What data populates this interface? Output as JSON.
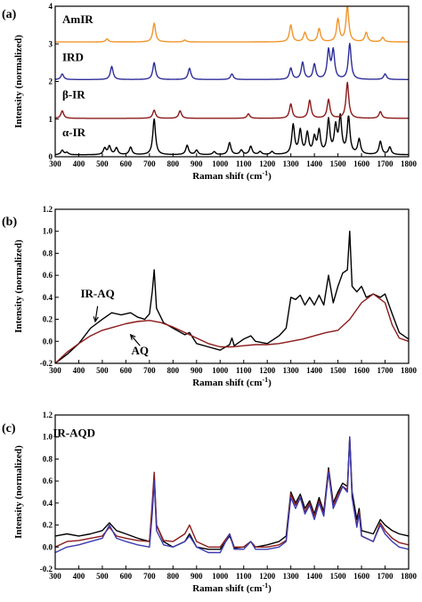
{
  "chart_data": [
    {
      "panel": "(a)",
      "type": "line",
      "xlabel": "Raman shift (cm",
      "xlabel_sup": "-1",
      "xlabel_close": ")",
      "ylabel": "Intensity (normalized)",
      "xlim": [
        300,
        1800
      ],
      "ylim": [
        0,
        4
      ],
      "x_ticks": [
        300,
        400,
        500,
        600,
        700,
        800,
        900,
        1000,
        1100,
        1200,
        1300,
        1400,
        1500,
        1600,
        1700,
        1800
      ],
      "y_ticks": [
        0,
        1,
        2,
        3,
        4
      ],
      "series": [
        {
          "name": "α-IR",
          "color": "#000000",
          "offset": 0,
          "baseline": 0.05,
          "peaks": [
            [
              330,
              0.12
            ],
            [
              350,
              0.06
            ],
            [
              510,
              0.17
            ],
            [
              530,
              0.22
            ],
            [
              560,
              0.18
            ],
            [
              620,
              0.2
            ],
            [
              720,
              0.95
            ],
            [
              860,
              0.25
            ],
            [
              900,
              0.12
            ],
            [
              975,
              0.08
            ],
            [
              1040,
              0.32
            ],
            [
              1090,
              0.12
            ],
            [
              1130,
              0.22
            ],
            [
              1170,
              0.08
            ],
            [
              1220,
              0.08
            ],
            [
              1310,
              0.78
            ],
            [
              1340,
              0.62
            ],
            [
              1370,
              0.55
            ],
            [
              1400,
              0.42
            ],
            [
              1420,
              0.6
            ],
            [
              1460,
              0.9
            ],
            [
              1490,
              0.7
            ],
            [
              1510,
              0.95
            ],
            [
              1545,
              0.98
            ],
            [
              1590,
              0.4
            ],
            [
              1680,
              0.35
            ],
            [
              1720,
              0.2
            ]
          ]
        },
        {
          "name": "β-IR",
          "color": "#8b1a1a",
          "offset": 1,
          "baseline": 0.02,
          "peaks": [
            [
              330,
              0.2
            ],
            [
              720,
              0.22
            ],
            [
              830,
              0.2
            ],
            [
              1120,
              0.12
            ],
            [
              1300,
              0.38
            ],
            [
              1380,
              0.48
            ],
            [
              1460,
              0.5
            ],
            [
              1540,
              0.95
            ],
            [
              1680,
              0.18
            ]
          ]
        },
        {
          "name": "IRD",
          "color": "#2e2e9a",
          "offset": 2,
          "baseline": 0.05,
          "peaks": [
            [
              330,
              0.15
            ],
            [
              540,
              0.35
            ],
            [
              720,
              0.45
            ],
            [
              870,
              0.3
            ],
            [
              1050,
              0.15
            ],
            [
              1300,
              0.3
            ],
            [
              1350,
              0.45
            ],
            [
              1400,
              0.4
            ],
            [
              1460,
              0.75
            ],
            [
              1480,
              0.75
            ],
            [
              1550,
              0.95
            ],
            [
              1700,
              0.15
            ]
          ]
        },
        {
          "name": "AmIR",
          "color": "#f0952b",
          "offset": 3,
          "baseline": 0.05,
          "peaks": [
            [
              520,
              0.08
            ],
            [
              720,
              0.5
            ],
            [
              850,
              0.05
            ],
            [
              1300,
              0.45
            ],
            [
              1360,
              0.25
            ],
            [
              1420,
              0.35
            ],
            [
              1500,
              0.6
            ],
            [
              1540,
              0.95
            ],
            [
              1620,
              0.25
            ],
            [
              1690,
              0.12
            ]
          ]
        }
      ]
    },
    {
      "panel": "(b)",
      "type": "line",
      "xlabel": "Raman shift (cm",
      "xlabel_sup": "-1",
      "xlabel_close": ")",
      "ylabel": "Intensity (normalized)",
      "xlim": [
        300,
        1800
      ],
      "ylim": [
        -0.2,
        1.2
      ],
      "x_ticks": [
        300,
        400,
        500,
        600,
        700,
        800,
        900,
        1000,
        1100,
        1200,
        1300,
        1400,
        1500,
        1600,
        1700,
        1800
      ],
      "y_ticks": [
        -0.2,
        0.0,
        0.2,
        0.4,
        0.6,
        0.8,
        1.0,
        1.2
      ],
      "annotations": [
        {
          "text": "IR-AQ",
          "x": 480,
          "y": 0.4
        },
        {
          "text": "AQ",
          "x": 660,
          "y": -0.12
        }
      ],
      "series": [
        {
          "name": "IR-AQ",
          "color": "#000000",
          "x": [
            300,
            350,
            400,
            450,
            500,
            540,
            580,
            620,
            650,
            680,
            700,
            712,
            720,
            730,
            760,
            800,
            850,
            870,
            900,
            950,
            1000,
            1040,
            1050,
            1060,
            1100,
            1130,
            1150,
            1200,
            1250,
            1280,
            1300,
            1320,
            1340,
            1360,
            1380,
            1400,
            1420,
            1440,
            1460,
            1480,
            1500,
            1520,
            1540,
            1550,
            1560,
            1580,
            1600,
            1620,
            1650,
            1680,
            1700,
            1730,
            1760,
            1800
          ],
          "y": [
            -0.2,
            -0.12,
            -0.02,
            0.12,
            0.2,
            0.26,
            0.24,
            0.26,
            0.22,
            0.2,
            0.25,
            0.45,
            0.65,
            0.3,
            0.17,
            0.12,
            0.06,
            0.08,
            -0.02,
            -0.05,
            -0.08,
            -0.03,
            0.03,
            -0.04,
            0.02,
            0.05,
            0.0,
            -0.02,
            0.05,
            0.12,
            0.4,
            0.38,
            0.42,
            0.33,
            0.4,
            0.33,
            0.42,
            0.33,
            0.6,
            0.35,
            0.5,
            0.62,
            0.65,
            1.0,
            0.5,
            0.45,
            0.5,
            0.4,
            0.43,
            0.4,
            0.43,
            0.25,
            0.08,
            0.02
          ]
        },
        {
          "name": "AQ",
          "color": "#8b1a1a",
          "x": [
            300,
            350,
            400,
            450,
            500,
            550,
            600,
            650,
            700,
            750,
            800,
            850,
            900,
            950,
            1000,
            1050,
            1100,
            1150,
            1200,
            1250,
            1300,
            1350,
            1400,
            1450,
            1500,
            1550,
            1600,
            1650,
            1700,
            1730,
            1760,
            1800
          ],
          "y": [
            -0.2,
            -0.1,
            -0.02,
            0.05,
            0.1,
            0.13,
            0.16,
            0.18,
            0.19,
            0.17,
            0.13,
            0.08,
            0.03,
            -0.02,
            -0.05,
            -0.05,
            -0.04,
            -0.03,
            -0.03,
            -0.02,
            0.0,
            0.02,
            0.05,
            0.08,
            0.1,
            0.2,
            0.35,
            0.43,
            0.35,
            0.15,
            0.03,
            0.0
          ]
        }
      ]
    },
    {
      "panel": "(c)",
      "type": "line",
      "xlabel": "Raman shift (cm",
      "xlabel_sup": "-1",
      "xlabel_close": ")",
      "ylabel": "Intensity (normalized)",
      "xlim": [
        300,
        1800
      ],
      "ylim": [
        -0.2,
        1.2
      ],
      "x_ticks": [
        300,
        400,
        500,
        600,
        700,
        800,
        900,
        1000,
        1100,
        1200,
        1300,
        1400,
        1500,
        1600,
        1700,
        1800
      ],
      "y_ticks": [
        -0.2,
        0.0,
        0.2,
        0.4,
        0.6,
        0.8,
        1.0,
        1.2
      ],
      "annotations": [
        {
          "text": "IR-AQD",
          "x": 380,
          "y": 1.0
        }
      ],
      "series": [
        {
          "color": "#000000",
          "x": [
            300,
            350,
            400,
            450,
            500,
            530,
            560,
            600,
            650,
            700,
            712,
            720,
            730,
            760,
            800,
            850,
            870,
            900,
            950,
            1000,
            1040,
            1050,
            1060,
            1100,
            1130,
            1150,
            1200,
            1250,
            1280,
            1300,
            1320,
            1340,
            1360,
            1380,
            1400,
            1420,
            1440,
            1460,
            1480,
            1500,
            1520,
            1540,
            1550,
            1560,
            1580,
            1590,
            1600,
            1650,
            1680,
            1700,
            1730,
            1760,
            1800
          ],
          "y": [
            0.1,
            0.12,
            0.1,
            0.12,
            0.15,
            0.22,
            0.15,
            0.12,
            0.08,
            0.05,
            0.35,
            0.65,
            0.2,
            0.05,
            0.0,
            0.05,
            0.12,
            0.0,
            -0.02,
            -0.02,
            0.1,
            0.05,
            -0.01,
            0.0,
            0.05,
            0.0,
            0.02,
            0.05,
            0.1,
            0.5,
            0.4,
            0.48,
            0.35,
            0.42,
            0.3,
            0.45,
            0.32,
            0.72,
            0.4,
            0.5,
            0.58,
            0.55,
            1.0,
            0.5,
            0.25,
            0.35,
            0.15,
            0.12,
            0.25,
            0.2,
            0.15,
            0.12,
            0.1
          ]
        },
        {
          "color": "#8b1a1a",
          "x": [
            300,
            350,
            400,
            450,
            500,
            530,
            560,
            600,
            650,
            700,
            712,
            720,
            730,
            760,
            800,
            850,
            870,
            900,
            950,
            1000,
            1040,
            1050,
            1060,
            1100,
            1130,
            1150,
            1200,
            1250,
            1280,
            1300,
            1320,
            1340,
            1360,
            1380,
            1400,
            1420,
            1440,
            1460,
            1480,
            1500,
            1520,
            1540,
            1550,
            1560,
            1580,
            1590,
            1600,
            1650,
            1680,
            1700,
            1730,
            1760,
            1800
          ],
          "y": [
            0.0,
            0.05,
            0.06,
            0.08,
            0.1,
            0.18,
            0.1,
            0.08,
            0.06,
            0.05,
            0.4,
            0.68,
            0.2,
            0.06,
            0.05,
            0.12,
            0.2,
            0.05,
            0.0,
            0.0,
            0.12,
            0.06,
            0.0,
            0.0,
            0.05,
            0.0,
            0.0,
            0.02,
            0.06,
            0.48,
            0.38,
            0.45,
            0.32,
            0.4,
            0.28,
            0.42,
            0.3,
            0.7,
            0.38,
            0.48,
            0.55,
            0.52,
            0.98,
            0.45,
            0.2,
            0.32,
            0.1,
            0.05,
            0.22,
            0.15,
            0.08,
            0.04,
            0.02
          ]
        },
        {
          "color": "#3b3bb0",
          "x": [
            300,
            350,
            400,
            450,
            500,
            530,
            560,
            600,
            650,
            700,
            712,
            720,
            730,
            760,
            800,
            850,
            870,
            900,
            950,
            1000,
            1040,
            1050,
            1060,
            1100,
            1130,
            1150,
            1200,
            1250,
            1280,
            1300,
            1320,
            1340,
            1360,
            1380,
            1400,
            1420,
            1440,
            1460,
            1480,
            1500,
            1520,
            1540,
            1550,
            1560,
            1580,
            1590,
            1600,
            1650,
            1680,
            1700,
            1730,
            1760,
            1800
          ],
          "y": [
            -0.05,
            0.0,
            0.02,
            0.05,
            0.08,
            0.2,
            0.08,
            0.05,
            0.02,
            0.0,
            0.3,
            0.6,
            0.15,
            0.02,
            0.0,
            0.05,
            0.1,
            0.0,
            -0.05,
            -0.05,
            0.12,
            0.05,
            -0.02,
            -0.02,
            0.05,
            -0.02,
            -0.02,
            0.0,
            0.05,
            0.45,
            0.35,
            0.45,
            0.3,
            0.38,
            0.25,
            0.4,
            0.28,
            0.68,
            0.35,
            0.45,
            0.55,
            0.5,
            1.0,
            0.45,
            0.18,
            0.3,
            0.1,
            0.05,
            0.2,
            0.12,
            0.05,
            0.0,
            -0.02
          ]
        }
      ]
    }
  ]
}
